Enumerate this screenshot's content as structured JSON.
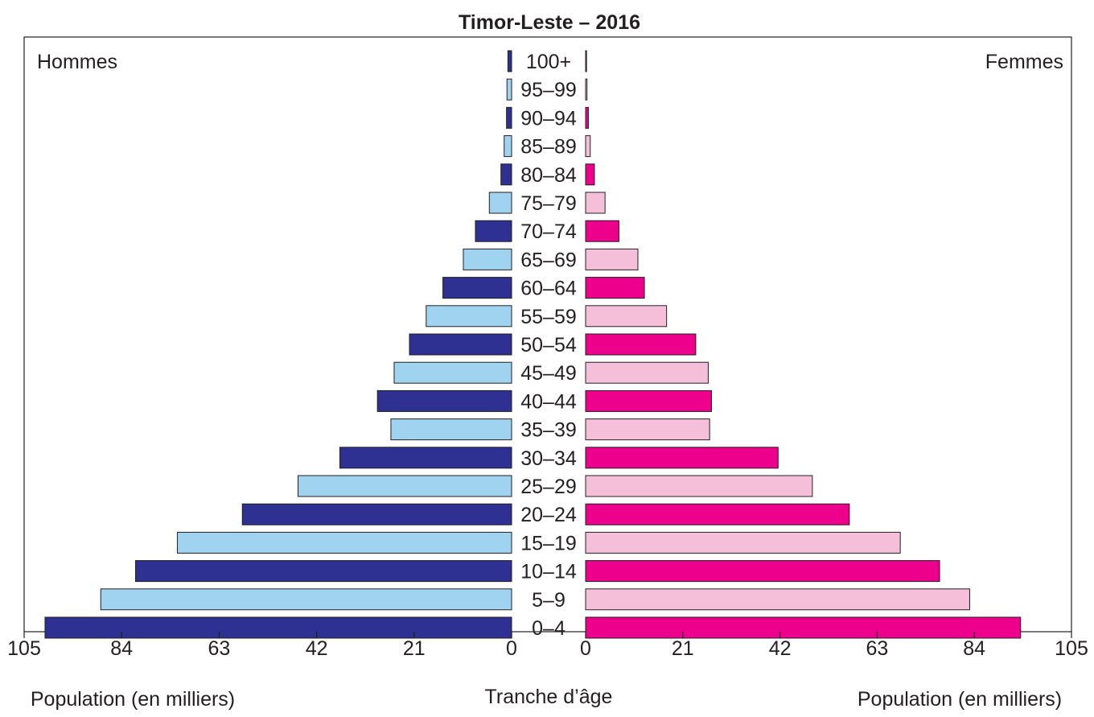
{
  "chart_data": {
    "type": "bar",
    "subtype": "population-pyramid",
    "title": "Timor-Leste – 2016",
    "left_label": "Hommes",
    "right_label": "Femmes",
    "center_axis_label": "Tranche d’âge",
    "xlabel_left": "Population (en milliers)",
    "xlabel_right": "Population (en milliers)",
    "xlim": [
      0,
      105
    ],
    "x_ticks": [
      105,
      84,
      63,
      42,
      21,
      0
    ],
    "x_ticks_right": [
      0,
      21,
      42,
      63,
      84,
      105
    ],
    "grid": false,
    "categories": [
      "100+",
      "95–99",
      "90–94",
      "85–89",
      "80–84",
      "75–79",
      "70–74",
      "65–69",
      "60–64",
      "55–59",
      "50–54",
      "45–49",
      "40–44",
      "35–39",
      "30–34",
      "25–29",
      "20–24",
      "15–19",
      "10–14",
      "5–9",
      "0–4"
    ],
    "series": [
      {
        "name": "Hommes",
        "values": [
          0.8,
          1.0,
          1.1,
          1.6,
          2.3,
          4.8,
          7.8,
          10.4,
          14.8,
          18.4,
          22.0,
          25.3,
          28.9,
          26.0,
          37.0,
          46.0,
          58.0,
          72.0,
          81.0,
          88.5,
          100.5
        ],
        "colors": [
          "#2e3192",
          "#a0d3f0"
        ]
      },
      {
        "name": "Femmes",
        "values": [
          0.2,
          0.3,
          0.6,
          1.0,
          1.9,
          4.2,
          7.2,
          11.3,
          12.7,
          17.5,
          23.8,
          26.5,
          27.2,
          26.8,
          41.6,
          49.0,
          57.0,
          68.0,
          76.5,
          83.0,
          94.0
        ],
        "colors": [
          "#ec008c",
          "#f6bfd9"
        ]
      }
    ]
  }
}
